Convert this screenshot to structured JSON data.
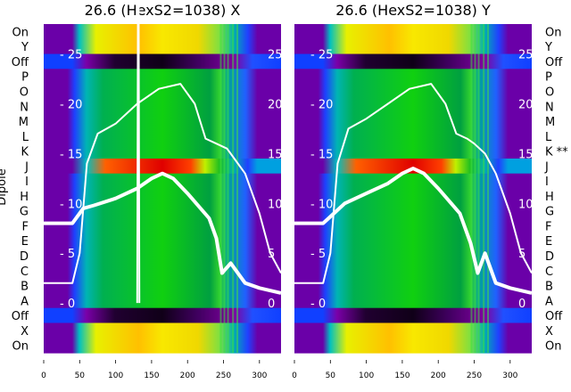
{
  "chart_data": [
    {
      "type": "heatmap",
      "title": "26.6 (HexS2=1038) X",
      "ylabel": "Dipole",
      "xlim": [
        0,
        330
      ],
      "x_ticks": [
        "0",
        "50",
        "100",
        "150",
        "200",
        "250",
        "300"
      ],
      "overlay_ylim": [
        -5,
        28
      ],
      "overlay_ticks": [
        "0",
        "5",
        "10",
        "15",
        "20",
        "25"
      ],
      "rows_top_to_bottom": [
        "On",
        "Y",
        "Off",
        "P",
        "O",
        "N",
        "M",
        "L",
        "K",
        "J",
        "I",
        "H",
        "G",
        "F",
        "E",
        "D",
        "C",
        "B",
        "A",
        "Off",
        "X",
        "On"
      ],
      "overlay_series": [
        {
          "x": [
            0,
            20,
            40,
            50,
            60,
            75,
            100,
            130,
            160,
            190,
            210,
            225,
            240,
            255,
            265,
            280,
            300,
            315,
            330
          ],
          "y": [
            2,
            2,
            2,
            5,
            14,
            17,
            18,
            20,
            21.5,
            22,
            20,
            16.5,
            16,
            15.5,
            14.5,
            13,
            9,
            5,
            3
          ]
        },
        {
          "x": [
            0,
            40,
            55,
            70,
            100,
            130,
            150,
            165,
            180,
            200,
            230,
            240,
            248,
            260,
            280,
            300,
            330
          ],
          "y": [
            8,
            8,
            9.5,
            9.8,
            10.5,
            11.5,
            12.5,
            13,
            12.5,
            11,
            8.5,
            6.5,
            3,
            4,
            2,
            1.5,
            1
          ]
        },
        {
          "x": [
            130,
            131,
            132,
            133
          ],
          "y": [
            0,
            30,
            30,
            0
          ]
        }
      ]
    },
    {
      "type": "heatmap",
      "title": "26.6 (HexS2=1038) Y",
      "ylabel": "",
      "xlim": [
        0,
        330
      ],
      "x_ticks": [
        "0",
        "50",
        "100",
        "150",
        "200",
        "250",
        "300"
      ],
      "overlay_ylim": [
        -5,
        28
      ],
      "overlay_ticks": [
        "0",
        "5",
        "10",
        "15",
        "20",
        "25"
      ],
      "rows_top_to_bottom": [
        "On",
        "Y",
        "Off",
        "P",
        "O",
        "N",
        "M",
        "L",
        "K **",
        "J",
        "I",
        "H",
        "G",
        "F",
        "E",
        "D",
        "C",
        "B",
        "A",
        "Off",
        "X",
        "On"
      ],
      "overlay_series": [
        {
          "x": [
            0,
            20,
            40,
            50,
            60,
            75,
            100,
            130,
            160,
            190,
            210,
            225,
            240,
            250,
            265,
            280,
            300,
            315,
            330
          ],
          "y": [
            2,
            2,
            2,
            5,
            14,
            17.5,
            18.5,
            20,
            21.5,
            22,
            20,
            17,
            16.5,
            16,
            15,
            13,
            9,
            5,
            3
          ]
        },
        {
          "x": [
            0,
            40,
            55,
            70,
            100,
            130,
            150,
            165,
            180,
            200,
            230,
            245,
            255,
            265,
            280,
            300,
            330
          ],
          "y": [
            8,
            8,
            9,
            10,
            11,
            12,
            13,
            13.5,
            13,
            11.5,
            9,
            6,
            3,
            5,
            2,
            1.5,
            1
          ]
        }
      ]
    }
  ]
}
